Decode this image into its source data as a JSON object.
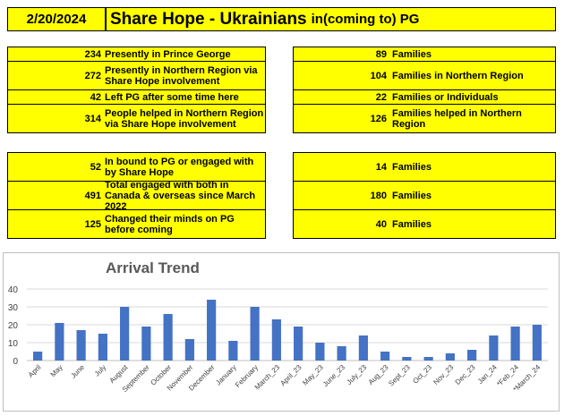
{
  "header": {
    "date": "2/20/2024",
    "title_main": "Share Hope - Ukrainians",
    "title_sub": "in(coming to) PG"
  },
  "block1": [
    {
      "num": "234",
      "text": "Presently in Prince George",
      "rnum": "89",
      "rtext": "Families"
    },
    {
      "num": "272",
      "text": "Presently in Northern Region via Share Hope involvement",
      "rnum": "104",
      "rtext": "Families in Northern Region"
    },
    {
      "num": "42",
      "text": "Left PG after some time here",
      "rnum": "22",
      "rtext": "Families or Individuals"
    },
    {
      "num": "314",
      "text": "People helped in Northern Region via Share Hope involvement",
      "rnum": "126",
      "rtext": "Families helped in Northern Region"
    }
  ],
  "block2": [
    {
      "num": "52",
      "text": "In bound to PG or engaged with by Share Hope",
      "rnum": "14",
      "rtext": "Families"
    },
    {
      "num": "491",
      "text": "Total engaged with both in Canada & overseas since March 2022",
      "rnum": "180",
      "rtext": "Families"
    },
    {
      "num": "125",
      "text": "Changed their minds on PG before coming",
      "rnum": "40",
      "rtext": "Families"
    }
  ],
  "chart_data": {
    "type": "bar",
    "title": "Arrival Trend",
    "categories": [
      "April",
      "May",
      "June",
      "July",
      "August",
      "September",
      "October",
      "November",
      "December",
      "January",
      "February",
      "March_23",
      "April_23",
      "May_23",
      "June_23",
      "July_23",
      "Aug_23",
      "Sept_23",
      "Oct_23",
      "Nov_23",
      "Dec_23",
      "Jan_24",
      "*Feb_24",
      "*March_24"
    ],
    "values": [
      5,
      21,
      17,
      15,
      30,
      19,
      26,
      12,
      34,
      11,
      30,
      23,
      19,
      10,
      8,
      14,
      5,
      2,
      2,
      4,
      6,
      14,
      19,
      20
    ],
    "ylim": [
      0,
      40
    ],
    "yticks": [
      0,
      10,
      20,
      30,
      40
    ],
    "grid": true,
    "bar_color": "#4472c4"
  }
}
